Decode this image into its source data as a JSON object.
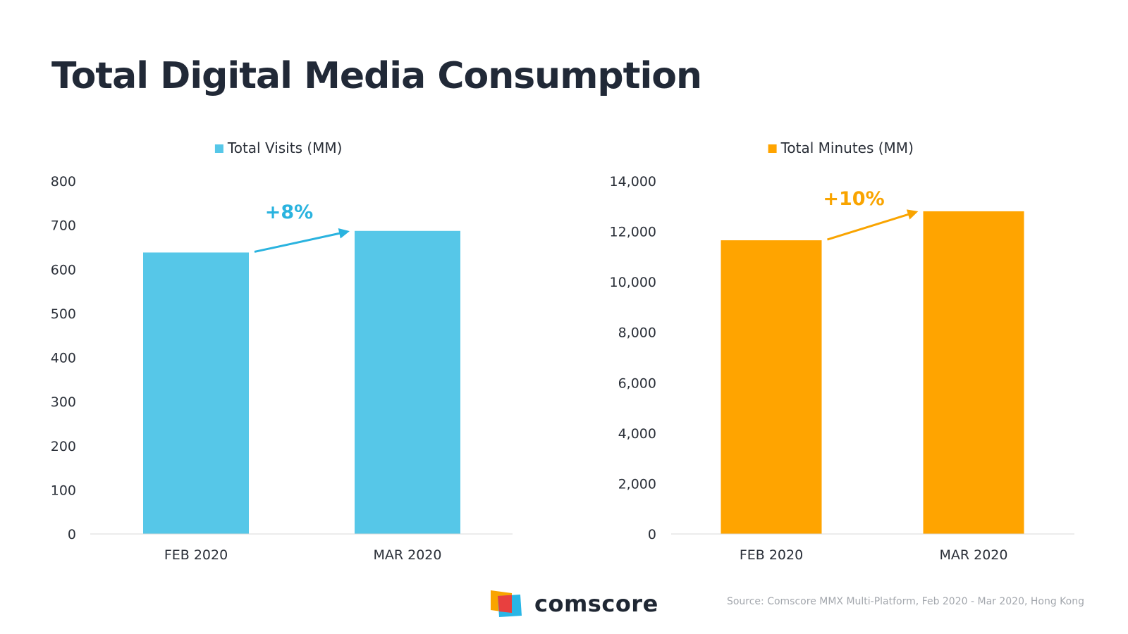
{
  "title": "Total Digital Media Consumption",
  "colors": {
    "visits": "#56c7e8",
    "minutes": "#ffa400",
    "visits_change": "#2ab3df",
    "minutes_change": "#f9a400",
    "axis_text": "#2a2f38"
  },
  "chart_data": [
    {
      "type": "bar",
      "title": "",
      "legend": "Total Visits (MM)",
      "legend_position": "top-center",
      "categories": [
        "FEB 2020",
        "MAR 2020"
      ],
      "values": [
        638,
        687
      ],
      "ylim": [
        0,
        800
      ],
      "yticks": [
        0,
        100,
        200,
        300,
        400,
        500,
        600,
        700,
        800
      ],
      "ytick_labels": [
        "0",
        "100",
        "200",
        "300",
        "400",
        "500",
        "600",
        "700",
        "800"
      ],
      "change_label": "+8%",
      "grid": false,
      "color": "#56c7e8"
    },
    {
      "type": "bar",
      "title": "",
      "legend": "Total Minutes (MM)",
      "legend_position": "top-center",
      "categories": [
        "FEB 2020",
        "MAR 2020"
      ],
      "values": [
        11650,
        12800
      ],
      "ylim": [
        0,
        14000
      ],
      "yticks": [
        0,
        2000,
        4000,
        6000,
        8000,
        10000,
        12000,
        14000
      ],
      "ytick_labels": [
        "0",
        "2,000",
        "4,000",
        "6,000",
        "8,000",
        "10,000",
        "12,000",
        "14,000"
      ],
      "change_label": "+10%",
      "grid": false,
      "color": "#ffa400"
    }
  ],
  "footer": {
    "brand": "comscore",
    "source": "Source: Comscore MMX Multi-Platform, Feb 2020 - Mar 2020, Hong Kong"
  }
}
